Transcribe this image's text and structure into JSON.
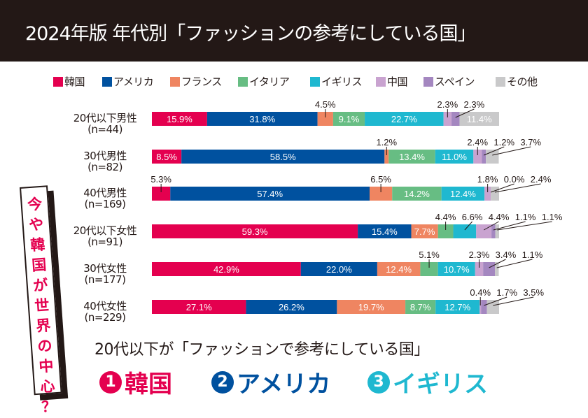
{
  "header": {
    "title": "2024年版 年代別「ファッションの参考にしている国」"
  },
  "legend": [
    {
      "label": "韓国",
      "color": "#e4004f"
    },
    {
      "label": "アメリカ",
      "color": "#00519f"
    },
    {
      "label": "フランス",
      "color": "#ef8561"
    },
    {
      "label": "イタリア",
      "color": "#67bd83"
    },
    {
      "label": "イギリス",
      "color": "#1fb8d0"
    },
    {
      "label": "中国",
      "color": "#c9a3d0"
    },
    {
      "label": "スペイン",
      "color": "#a487c0"
    },
    {
      "label": "その他",
      "color": "#c9c9ca"
    }
  ],
  "chart_data": {
    "type": "bar",
    "orientation": "horizontal",
    "stacked": true,
    "normalized": true,
    "title": "2024年版 年代別「ファッションの参考にしている国」",
    "unit": "%",
    "categories": [
      "20代以下男性",
      "30代男性",
      "40代男性",
      "20代以下女性",
      "30代女性",
      "40代女性"
    ],
    "sample_sizes": [
      "(n=44)",
      "(n=82)",
      "(n=169)",
      "(n=91)",
      "(n=177)",
      "(n=229)"
    ],
    "legend_position": "top",
    "series": [
      {
        "name": "韓国",
        "values": [
          15.9,
          8.5,
          5.3,
          59.3,
          42.9,
          27.1
        ]
      },
      {
        "name": "アメリカ",
        "values": [
          31.8,
          58.5,
          57.4,
          15.4,
          22.0,
          26.2
        ]
      },
      {
        "name": "フランス",
        "values": [
          4.5,
          1.2,
          6.5,
          7.7,
          12.4,
          19.7
        ]
      },
      {
        "name": "イタリア",
        "values": [
          9.1,
          13.4,
          14.2,
          4.4,
          5.1,
          8.7
        ]
      },
      {
        "name": "イギリス",
        "values": [
          22.7,
          11.0,
          12.4,
          6.6,
          10.7,
          12.7
        ]
      },
      {
        "name": "中国",
        "values": [
          2.3,
          2.4,
          1.8,
          4.4,
          2.3,
          0.4
        ]
      },
      {
        "name": "スペイン",
        "values": [
          2.3,
          1.2,
          0.0,
          1.1,
          3.4,
          1.7
        ]
      },
      {
        "name": "その他",
        "values": [
          11.4,
          3.7,
          2.4,
          1.1,
          1.1,
          3.5
        ]
      }
    ],
    "xlim": [
      0,
      100
    ]
  },
  "side_callout": {
    "chars": [
      "今",
      "や",
      "韓",
      "国",
      "が",
      "世",
      "界",
      "の",
      "中",
      "心",
      "？"
    ]
  },
  "summary": {
    "title": "20代以下が「ファッションで参考にしている国」",
    "ranks": [
      {
        "num": "1",
        "label": "韓国",
        "color": "#e4004f"
      },
      {
        "num": "2",
        "label": "アメリカ",
        "color": "#00519f"
      },
      {
        "num": "3",
        "label": "イギリス",
        "color": "#1fb8d0"
      }
    ]
  }
}
